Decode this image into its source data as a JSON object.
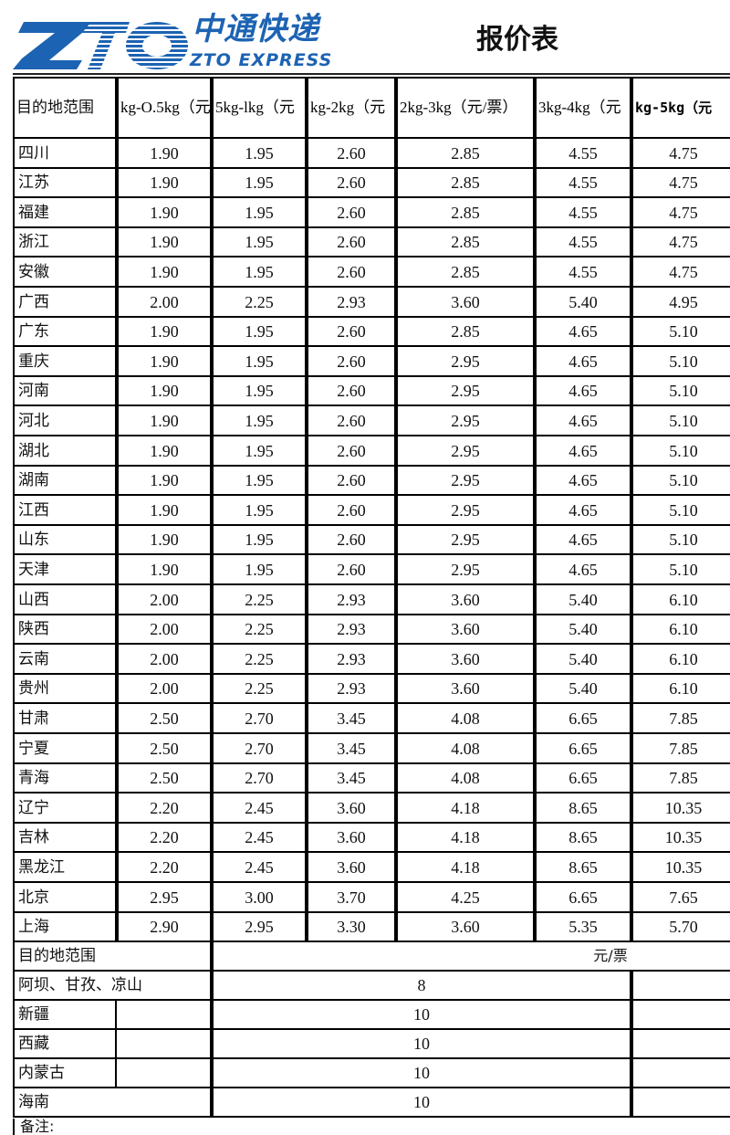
{
  "header": {
    "logo_cn": "中通快递",
    "logo_en": "ZTO EXPRESS",
    "logo_mark": "ZTO",
    "brand_color": "#1d63b3",
    "title": "报价表"
  },
  "price_table": {
    "columns": [
      "目的地范围",
      "kg-O.5kg（元",
      "5kg-lkg（元",
      "kg-2kg（元",
      "2kg-3kg（元/票）",
      "3kg-4kg（元",
      "kg-5kg（元"
    ],
    "rows": [
      [
        "四川",
        "1.90",
        "1.95",
        "2.60",
        "2.85",
        "4.55",
        "4.75"
      ],
      [
        "江苏",
        "1.90",
        "1.95",
        "2.60",
        "2.85",
        "4.55",
        "4.75"
      ],
      [
        "福建",
        "1.90",
        "1.95",
        "2.60",
        "2.85",
        "4.55",
        "4.75"
      ],
      [
        "浙江",
        "1.90",
        "1.95",
        "2.60",
        "2.85",
        "4.55",
        "4.75"
      ],
      [
        "安徽",
        "1.90",
        "1.95",
        "2.60",
        "2.85",
        "4.55",
        "4.75"
      ],
      [
        "广西",
        "2.00",
        "2.25",
        "2.93",
        "3.60",
        "5.40",
        "4.95"
      ],
      [
        "广东",
        "1.90",
        "1.95",
        "2.60",
        "2.85",
        "4.65",
        "5.10"
      ],
      [
        "重庆",
        "1.90",
        "1.95",
        "2.60",
        "2.95",
        "4.65",
        "5.10"
      ],
      [
        "河南",
        "1.90",
        "1.95",
        "2.60",
        "2.95",
        "4.65",
        "5.10"
      ],
      [
        "河北",
        "1.90",
        "1.95",
        "2.60",
        "2.95",
        "4.65",
        "5.10"
      ],
      [
        "湖北",
        "1.90",
        "1.95",
        "2.60",
        "2.95",
        "4.65",
        "5.10"
      ],
      [
        "湖南",
        "1.90",
        "1.95",
        "2.60",
        "2.95",
        "4.65",
        "5.10"
      ],
      [
        "江西",
        "1.90",
        "1.95",
        "2.60",
        "2.95",
        "4.65",
        "5.10"
      ],
      [
        "山东",
        "1.90",
        "1.95",
        "2.60",
        "2.95",
        "4.65",
        "5.10"
      ],
      [
        "天津",
        "1.90",
        "1.95",
        "2.60",
        "2.95",
        "4.65",
        "5.10"
      ],
      [
        "山西",
        "2.00",
        "2.25",
        "2.93",
        "3.60",
        "5.40",
        "6.10"
      ],
      [
        "陕西",
        "2.00",
        "2.25",
        "2.93",
        "3.60",
        "5.40",
        "6.10"
      ],
      [
        "云南",
        "2.00",
        "2.25",
        "2.93",
        "3.60",
        "5.40",
        "6.10"
      ],
      [
        "贵州",
        "2.00",
        "2.25",
        "2.93",
        "3.60",
        "5.40",
        "6.10"
      ],
      [
        "甘肃",
        "2.50",
        "2.70",
        "3.45",
        "4.08",
        "6.65",
        "7.85"
      ],
      [
        "宁夏",
        "2.50",
        "2.70",
        "3.45",
        "4.08",
        "6.65",
        "7.85"
      ],
      [
        "青海",
        "2.50",
        "2.70",
        "3.45",
        "4.08",
        "6.65",
        "7.85"
      ],
      [
        "辽宁",
        "2.20",
        "2.45",
        "3.60",
        "4.18",
        "8.65",
        "10.35"
      ],
      [
        "吉林",
        "2.20",
        "2.45",
        "3.60",
        "4.18",
        "8.65",
        "10.35"
      ],
      [
        "黑龙江",
        "2.20",
        "2.45",
        "3.60",
        "4.18",
        "8.65",
        "10.35"
      ],
      [
        "北京",
        "2.95",
        "3.00",
        "3.70",
        "4.25",
        "6.65",
        "7.65"
      ],
      [
        "上海",
        "2.90",
        "2.95",
        "3.30",
        "3.60",
        "5.35",
        "5.70"
      ]
    ]
  },
  "surcharge_table": {
    "header_region": "目的地范围",
    "header_unit": "元/票",
    "rows": [
      {
        "region": "阿坝、甘孜、凉山",
        "value": "8"
      },
      {
        "region": "新疆",
        "value": "10"
      },
      {
        "region": "西藏",
        "value": "10"
      },
      {
        "region": "内蒙古",
        "value": "10"
      },
      {
        "region": "海南",
        "value": "10"
      }
    ]
  },
  "note_label": "备注:"
}
